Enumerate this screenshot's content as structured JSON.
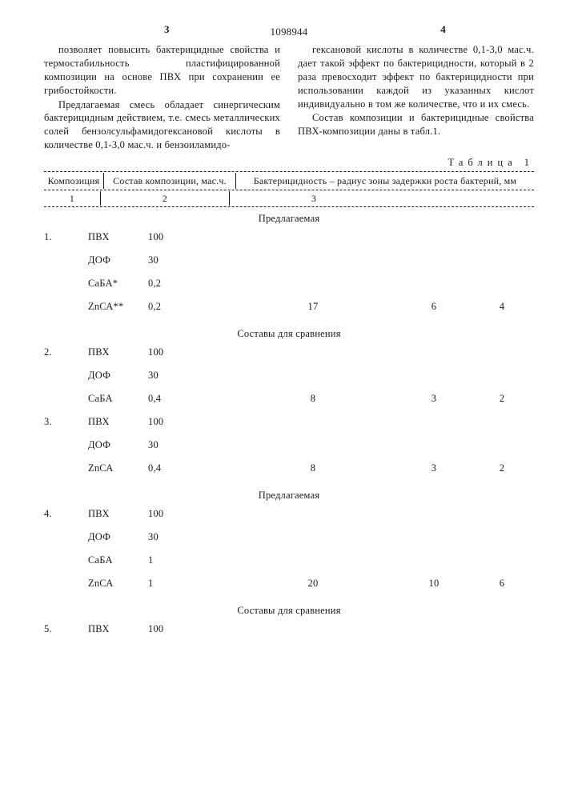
{
  "page_left_num": "3",
  "page_right_num": "4",
  "doc_number": "1098944",
  "left_column": [
    "позволяет повысить бактерицидные свойства и термостабильность пластифицированной композиции на основе ПВХ при сохранении ее грибостойкости.",
    "Предлагаемая смесь обладает синергическим бактерицидным действием, т.е. смесь металлических солей бензолсульфамидогексановой кислоты в количестве 0,1-3,0 мас.ч. и бензоиламидо-"
  ],
  "right_column": [
    "гексановой кислоты в количестве 0,1-3,0 мас.ч. дает такой эффект по бактерицидности, который в 2 раза превосходит эффект по бактерицидности при использовании каждой из указанных кислот индивидуально в том же количестве, что и их смесь.",
    "Состав композиции и бактерицидные свойства ПВХ-композиции даны в табл.1."
  ],
  "table_label": "Таблица 1",
  "headers": {
    "h1": "Композиция",
    "h2": "Состав композиции, мас.ч.",
    "h3": "Бактерицидность – радиус зоны задержки роста бактерий, мм",
    "s1": "1",
    "s2": "2",
    "s3": "3"
  },
  "sections": [
    {
      "title": "Предлагаемая",
      "groups": [
        {
          "num": "1.",
          "rows": [
            {
              "comp": "ПВХ",
              "val": "100"
            },
            {
              "comp": "ДОФ",
              "val": "30"
            },
            {
              "comp": "СаБА*",
              "val": "0,2"
            },
            {
              "comp": "ZnСА**",
              "val": "0,2",
              "b1": "17",
              "b2": "6",
              "b3": "4"
            }
          ]
        }
      ]
    },
    {
      "title": "Составы для сравнения",
      "groups": [
        {
          "num": "2.",
          "rows": [
            {
              "comp": "ПВХ",
              "val": "100"
            },
            {
              "comp": "ДОФ",
              "val": "30"
            },
            {
              "comp": "СаБА",
              "val": "0,4",
              "b1": "8",
              "b2": "3",
              "b3": "2"
            }
          ]
        },
        {
          "num": "3.",
          "rows": [
            {
              "comp": "ПВХ",
              "val": "100"
            },
            {
              "comp": "ДОФ",
              "val": "30"
            },
            {
              "comp": "ZnСА",
              "val": "0,4",
              "b1": "8",
              "b2": "3",
              "b3": "2"
            }
          ]
        }
      ]
    },
    {
      "title": "Предлагаемая",
      "groups": [
        {
          "num": "4.",
          "rows": [
            {
              "comp": "ПВХ",
              "val": "100"
            },
            {
              "comp": "ДОФ",
              "val": "30"
            },
            {
              "comp": "СаБА",
              "val": "1"
            },
            {
              "comp": "ZnСА",
              "val": "1",
              "b1": "20",
              "b2": "10",
              "b3": "6"
            }
          ]
        }
      ]
    },
    {
      "title": "Составы для сравнения",
      "groups": [
        {
          "num": "5.",
          "rows": [
            {
              "comp": "ПВХ",
              "val": "100"
            }
          ]
        }
      ]
    }
  ]
}
